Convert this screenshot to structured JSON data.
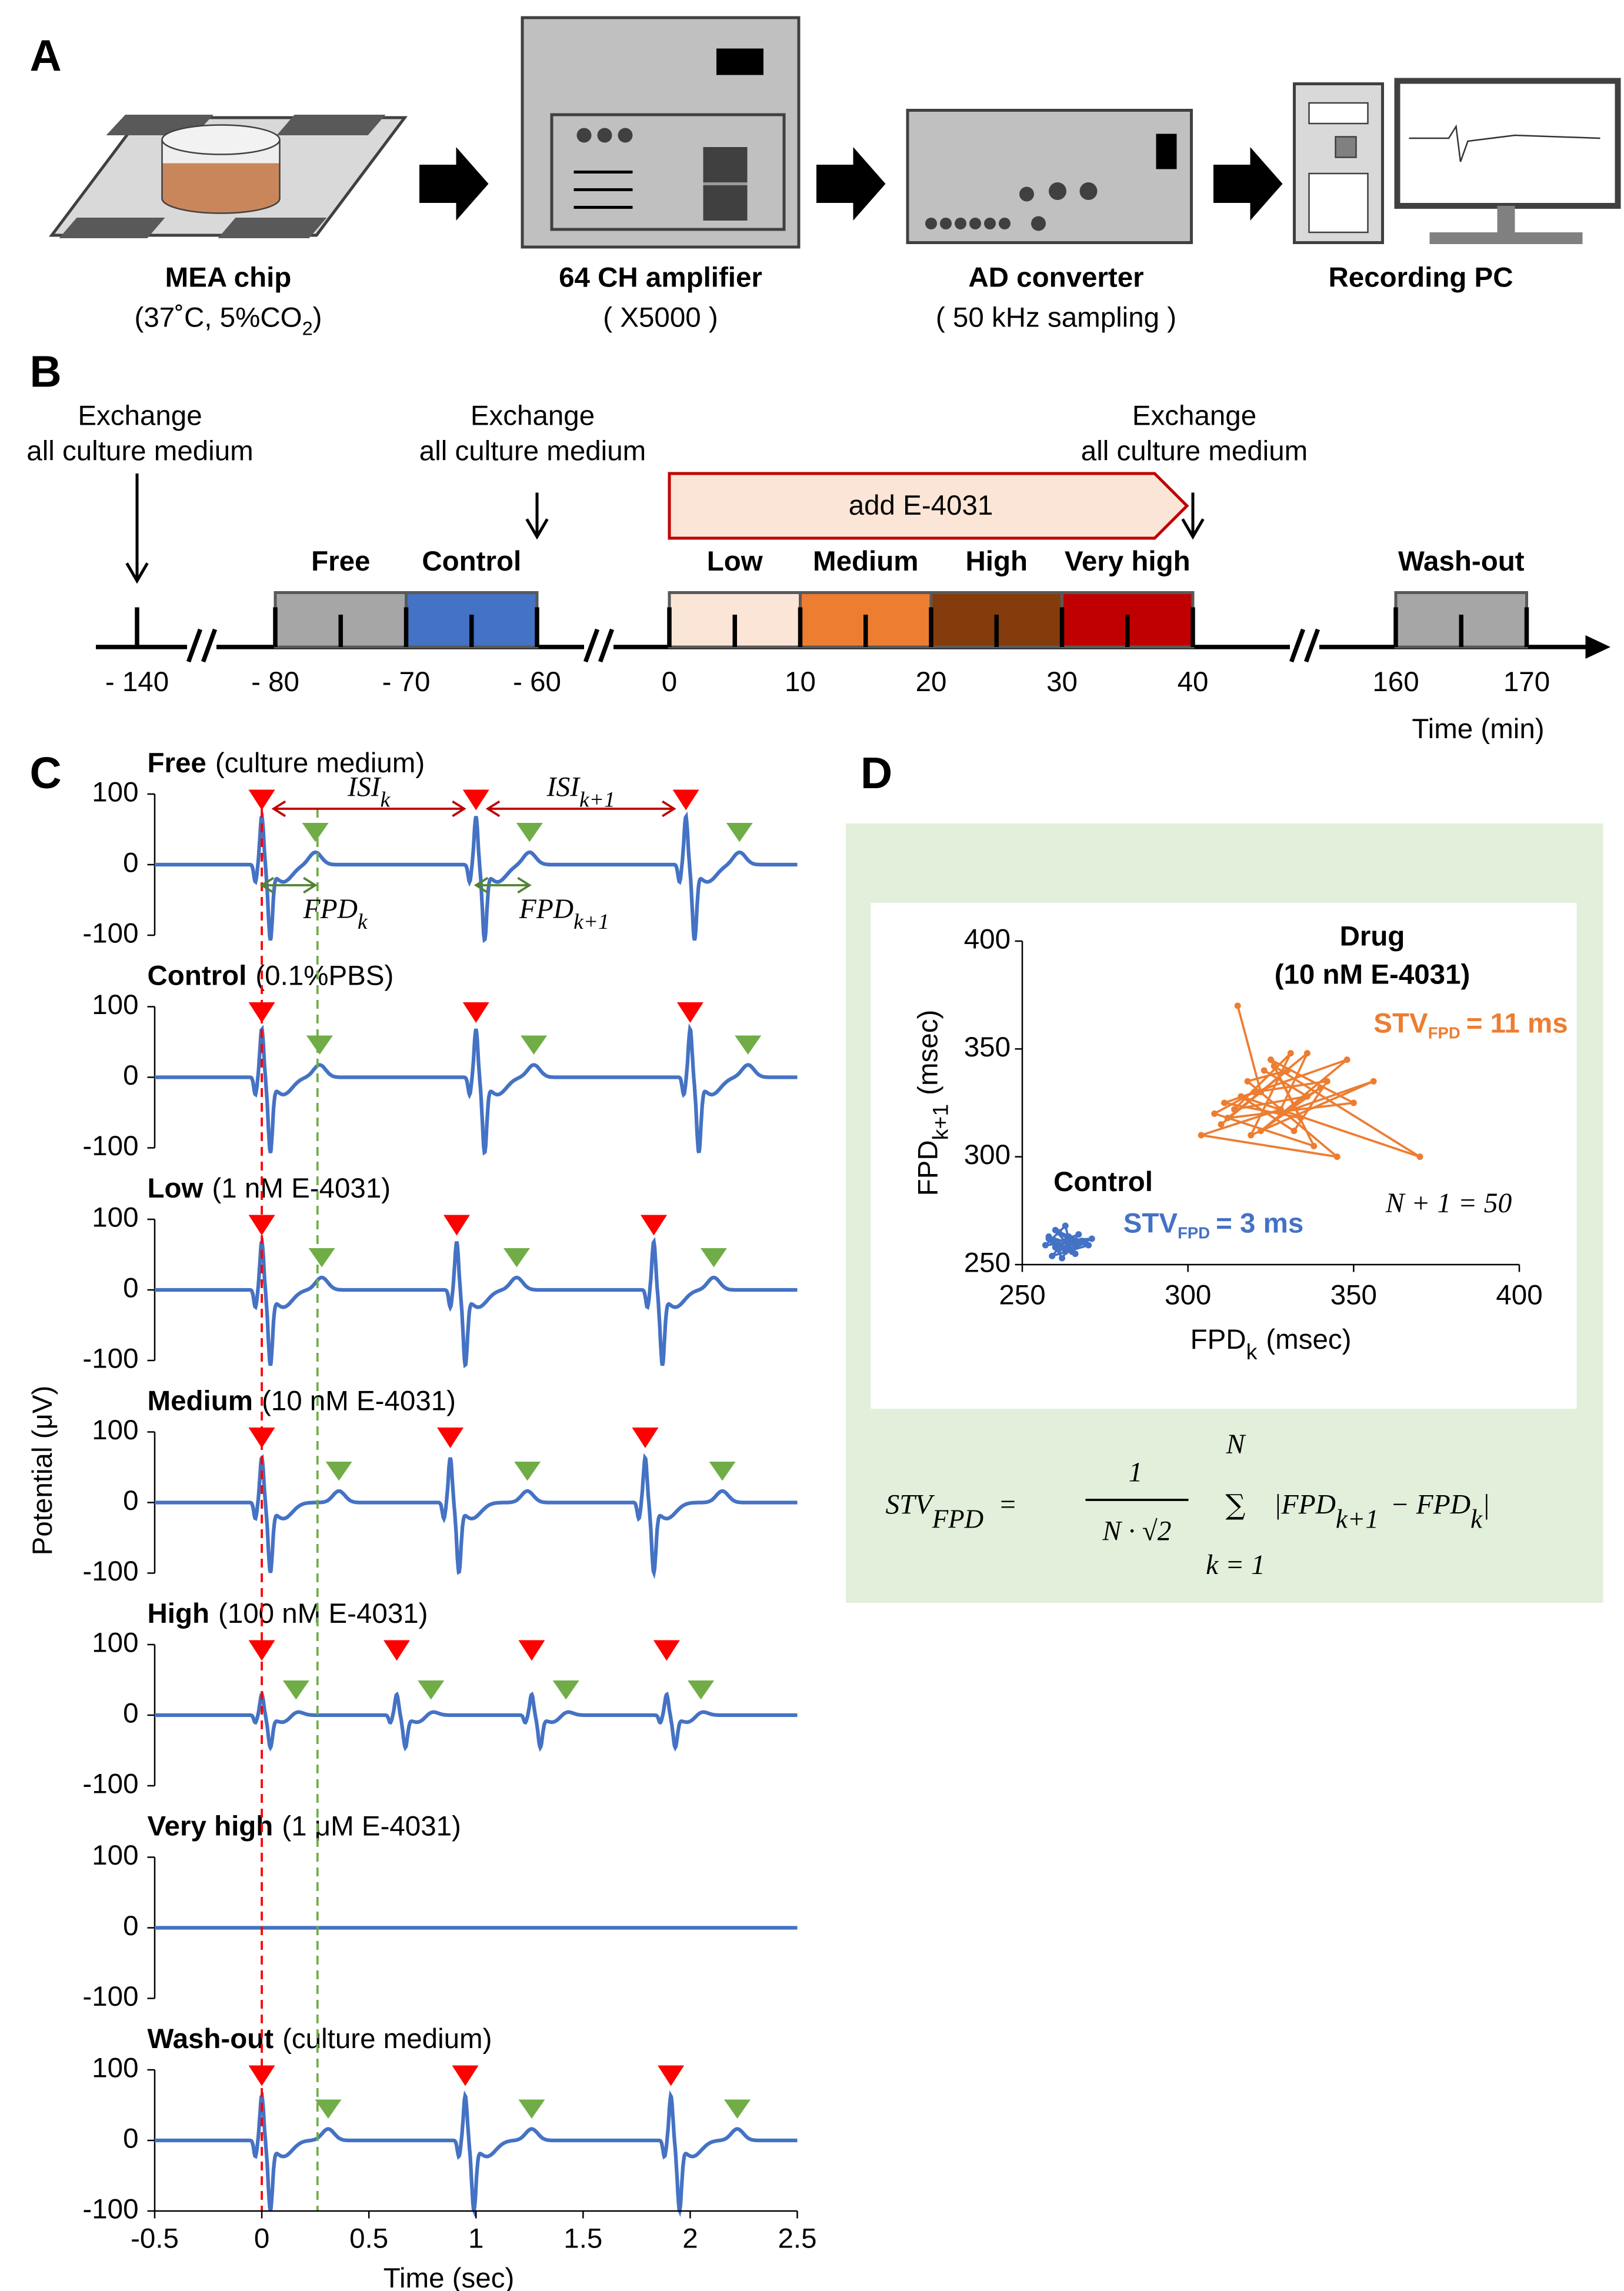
{
  "panel_a": {
    "letter": "A",
    "devices": [
      {
        "name": "MEA chip",
        "detail": "(37˚C, 5%CO",
        "detail_sub": "2",
        "detail_end": ")"
      },
      {
        "name": "64 CH amplifier",
        "detail": "( X5000 )"
      },
      {
        "name": "AD converter",
        "detail": "( 50 kHz sampling )"
      },
      {
        "name": "Recording PC"
      }
    ]
  },
  "panel_b": {
    "letter": "B",
    "exchange_label": [
      "Exchange",
      "all culture medium"
    ],
    "exchanges": [
      -140,
      -60,
      40
    ],
    "drug_arrow": {
      "label": "add E-4031",
      "start": 0,
      "end": 40
    },
    "blocks": [
      {
        "label": "Free",
        "start": -80,
        "end": -70,
        "color": "#a6a6a6"
      },
      {
        "label": "Control",
        "start": -70,
        "end": -60,
        "color": "#4472c4"
      },
      {
        "label": "Low",
        "start": 0,
        "end": 10,
        "color": "#fbe5d6"
      },
      {
        "label": "Medium",
        "start": 10,
        "end": 20,
        "color": "#ed7d31"
      },
      {
        "label": "High",
        "start": 20,
        "end": 30,
        "color": "#843c0c"
      },
      {
        "label": "Very high",
        "start": 30,
        "end": 40,
        "color": "#c00000"
      },
      {
        "label": "Wash-out",
        "start": 160,
        "end": 170,
        "color": "#a6a6a6"
      }
    ],
    "ticks": [
      {
        "value": -140,
        "label": "- 140"
      },
      {
        "value": -80,
        "label": "- 80"
      },
      {
        "value": -70,
        "label": "- 70"
      },
      {
        "value": -60,
        "label": "- 60"
      },
      0,
      10,
      20,
      30,
      40,
      160,
      170
    ],
    "axis_label": "Time (min)"
  },
  "panel_c": {
    "letter": "C",
    "ylabel": "Potential (μV)",
    "xlabel": "Time (sec)",
    "xlim": [
      -0.5,
      2.5
    ],
    "xticks": [
      -0.5,
      0,
      0.5,
      1,
      1.5,
      2,
      2.5
    ],
    "ylim": [
      -100,
      100
    ],
    "yticks": [
      -100,
      0,
      100
    ],
    "reference_lines": [
      0,
      0.26
    ],
    "annotations": {
      "isi": "ISI",
      "fpd": "FPD",
      "sub_k": "k",
      "sub_k1": "k+1"
    },
    "traces": [
      {
        "name": "Free",
        "condition": "(culture medium)",
        "spikes": [
          0,
          1,
          1.98
        ],
        "fpd": 0.25,
        "amplitude": 70
      },
      {
        "name": "Control",
        "condition": "(0.1%PBS)",
        "spikes": [
          0,
          1,
          2
        ],
        "fpd": 0.27,
        "amplitude": 70
      },
      {
        "name": "Low",
        "condition": "(1 nM E-4031)",
        "spikes": [
          0,
          0.91,
          1.83
        ],
        "fpd": 0.28,
        "amplitude": 70
      },
      {
        "name": "Medium",
        "condition": "(10 nM E-4031)",
        "spikes": [
          0,
          0.88,
          1.79
        ],
        "fpd": 0.36,
        "amplitude": 65
      },
      {
        "name": "High",
        "condition": "(100 nM E-4031)",
        "spikes": [
          0,
          0.63,
          1.26,
          1.89
        ],
        "fpd": 0.16,
        "amplitude": 30
      },
      {
        "name": "Very high",
        "condition": "(1 μM E-4031)",
        "spikes": [],
        "fpd": 0,
        "amplitude": 0
      },
      {
        "name": "Wash-out",
        "condition": "(culture medium)",
        "spikes": [
          0,
          0.95,
          1.91
        ],
        "fpd": 0.31,
        "amplitude": 65
      }
    ]
  },
  "panel_d": {
    "letter": "D",
    "type": "scatter",
    "xlabel": "FPD",
    "xlabel_sub": "k",
    "xlabel_end": "(msec)",
    "ylabel": "FPD",
    "ylabel_sub": "k+1",
    "ylabel_end": "(msec)",
    "xlim": [
      250,
      400
    ],
    "ylim": [
      250,
      400
    ],
    "xticks": [
      250,
      300,
      350,
      400
    ],
    "yticks": [
      250,
      300,
      350,
      400
    ],
    "n_note": "N + 1 = 50",
    "series": [
      {
        "name": "Control",
        "color": "#4472c4",
        "stv": "STV",
        "stv_sub": "FPD",
        "stv_end": "= 3 ms",
        "x": [
          262,
          258,
          266,
          260,
          270,
          259,
          264,
          261,
          268,
          257,
          263,
          265,
          260,
          267,
          262,
          259,
          271,
          264,
          261,
          266,
          258,
          263,
          269,
          260,
          265
        ],
        "y": [
          258,
          262,
          255,
          266,
          259,
          254,
          263,
          257,
          261,
          259,
          268,
          256,
          260,
          264,
          253,
          261,
          262,
          257,
          265,
          259,
          263,
          256,
          260,
          258,
          262
        ]
      },
      {
        "name": "Drug",
        "subtitle": "(10 nM E-4031)",
        "color": "#ed7d31",
        "stv": "STV",
        "stv_sub": "FPD",
        "stv_end": "= 11 ms",
        "x": [
          315,
          322,
          310,
          336,
          328,
          304,
          345,
          318,
          330,
          312,
          350,
          325,
          338,
          308,
          320,
          342,
          332,
          316,
          370,
          326,
          334,
          311,
          348,
          322,
          340,
          328,
          356,
          319,
          331,
          314,
          336,
          323
        ],
        "y": [
          370,
          330,
          315,
          348,
          322,
          310,
          300,
          335,
          340,
          318,
          325,
          345,
          305,
          320,
          330,
          335,
          312,
          328,
          300,
          342,
          318,
          325,
          345,
          312,
          332,
          320,
          335,
          310,
          348,
          322,
          328,
          340
        ]
      }
    ],
    "formula": {
      "lhs": "STV",
      "lhs_sub": "FPD",
      "eq": "=",
      "num": "1",
      "den": "N · √2",
      "sum": "∑",
      "sum_top": "N",
      "sum_bottom": "k = 1",
      "term1": "|FPD",
      "sub1": "k+1",
      "minus": "− FPD",
      "sub2": "k",
      "end": "|"
    }
  }
}
